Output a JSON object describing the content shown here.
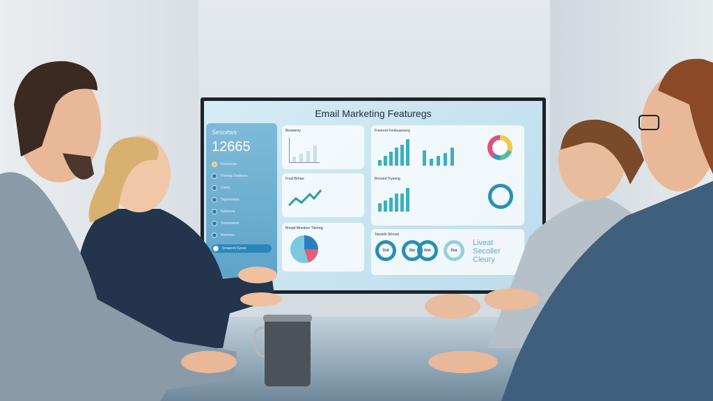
{
  "screen": {
    "title": "Email Marketing Featuregs",
    "sidebar": {
      "label": "Sesoitws",
      "value": "12665",
      "items": [
        "Enoeciops",
        "Pneeop Dedosns",
        "Coms",
        "Tegessnsoo",
        "Faheiose",
        "Snoeowens",
        "Ronbses",
        "Smaeonl Sysos"
      ]
    },
    "cards": [
      "Beowenty",
      "Fnod Brhise",
      "Bneqd Mnodosr Tleirnqy",
      "Freorent Fenbouesong",
      "Bnoued Tryeeng",
      "Taestdo Sllcoae"
    ],
    "rings": [
      "Dsd",
      "Sbo",
      "Wsb",
      "Dsa"
    ],
    "footer_text": "Liveat Secoller Cleury",
    "accent": "#3ab0c0"
  }
}
